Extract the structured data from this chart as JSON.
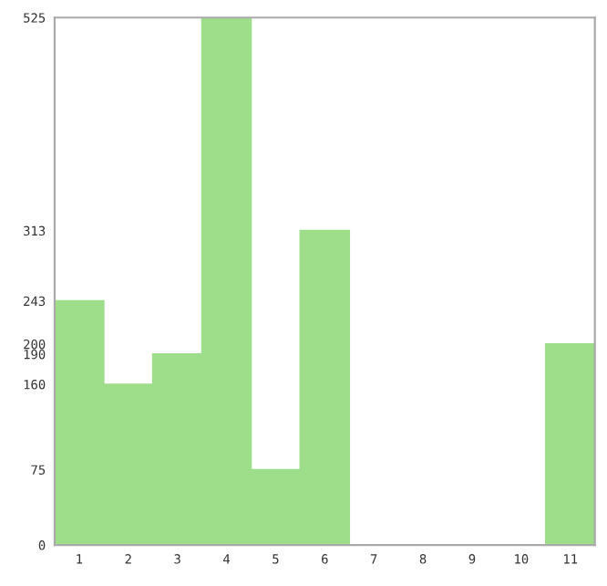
{
  "chart_data": {
    "type": "bar",
    "categories": [
      "1",
      "2",
      "3",
      "4",
      "5",
      "6",
      "7",
      "8",
      "9",
      "10",
      "11"
    ],
    "values": [
      243,
      160,
      190,
      525,
      75,
      313,
      0,
      0,
      0,
      0,
      200
    ],
    "color": "#9ede8a",
    "ylim": [
      0,
      525
    ],
    "yticks": [
      0,
      75,
      160,
      190,
      200,
      243,
      313,
      525
    ],
    "grid": false
  }
}
